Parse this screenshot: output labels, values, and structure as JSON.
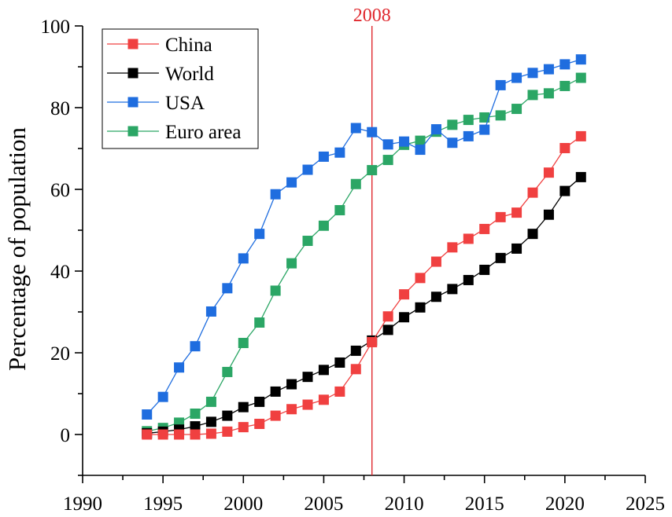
{
  "chart_data": {
    "type": "line",
    "title": "",
    "xlabel": "",
    "ylabel": "Percentage of population",
    "xlim": [
      1990,
      2025
    ],
    "ylim": [
      -10,
      100
    ],
    "x_ticks": [
      1990,
      1995,
      2000,
      2005,
      2010,
      2015,
      2020,
      2025
    ],
    "x_tick_labels": [
      "1990",
      "1995",
      "2000",
      "2005",
      "2010",
      "2015",
      "2020",
      "2025"
    ],
    "y_ticks": [
      0,
      20,
      40,
      60,
      80,
      100
    ],
    "y_tick_labels": [
      "0",
      "20",
      "40",
      "60",
      "80",
      "100"
    ],
    "grid": false,
    "legend_position": "top-left",
    "annotation": {
      "label": "2008",
      "x": 2008,
      "color": "#e0282e"
    },
    "x": [
      1994,
      1995,
      1996,
      1997,
      1998,
      1999,
      2000,
      2001,
      2002,
      2003,
      2004,
      2005,
      2006,
      2007,
      2008,
      2009,
      2010,
      2011,
      2012,
      2013,
      2014,
      2015,
      2016,
      2017,
      2018,
      2019,
      2020,
      2021
    ],
    "series": [
      {
        "name": "China",
        "color": "#f04040",
        "values": [
          0,
          0,
          0,
          0,
          0.2,
          0.7,
          1.8,
          2.6,
          4.6,
          6.2,
          7.3,
          8.5,
          10.5,
          16,
          22.6,
          28.9,
          34.3,
          38.3,
          42.3,
          45.8,
          47.9,
          50.3,
          53.2,
          54.3,
          59.2,
          64.1,
          70.1,
          73
        ]
      },
      {
        "name": "World",
        "color": "#000000",
        "values": [
          0.3,
          0.7,
          1.2,
          2,
          3.1,
          4.6,
          6.7,
          8,
          10.5,
          12.3,
          14.1,
          15.8,
          17.6,
          20.5,
          23,
          25.6,
          28.7,
          31.1,
          33.7,
          35.6,
          37.8,
          40.3,
          43.2,
          45.5,
          49.1,
          53.8,
          59.6,
          63
        ]
      },
      {
        "name": "USA",
        "color": "#1f6ddf",
        "values": [
          4.9,
          9.2,
          16.4,
          21.6,
          30.1,
          35.8,
          43.1,
          49.1,
          58.8,
          61.7,
          64.8,
          68,
          69,
          75,
          74,
          71,
          71.7,
          69.7,
          74.7,
          71.4,
          73,
          74.6,
          85.5,
          87.3,
          88.5,
          89.4,
          90.6,
          91.8
        ]
      },
      {
        "name": "Euro area",
        "color": "#2ba665",
        "values": [
          0.8,
          1.6,
          2.9,
          5.1,
          8,
          15.3,
          22.4,
          27.4,
          35.2,
          41.9,
          47.4,
          51.1,
          54.9,
          61.3,
          64.7,
          67.2,
          70.9,
          71.9,
          74.1,
          75.8,
          77,
          77.6,
          78.1,
          79.7,
          83.1,
          83.5,
          85.3,
          87.3
        ]
      }
    ]
  }
}
